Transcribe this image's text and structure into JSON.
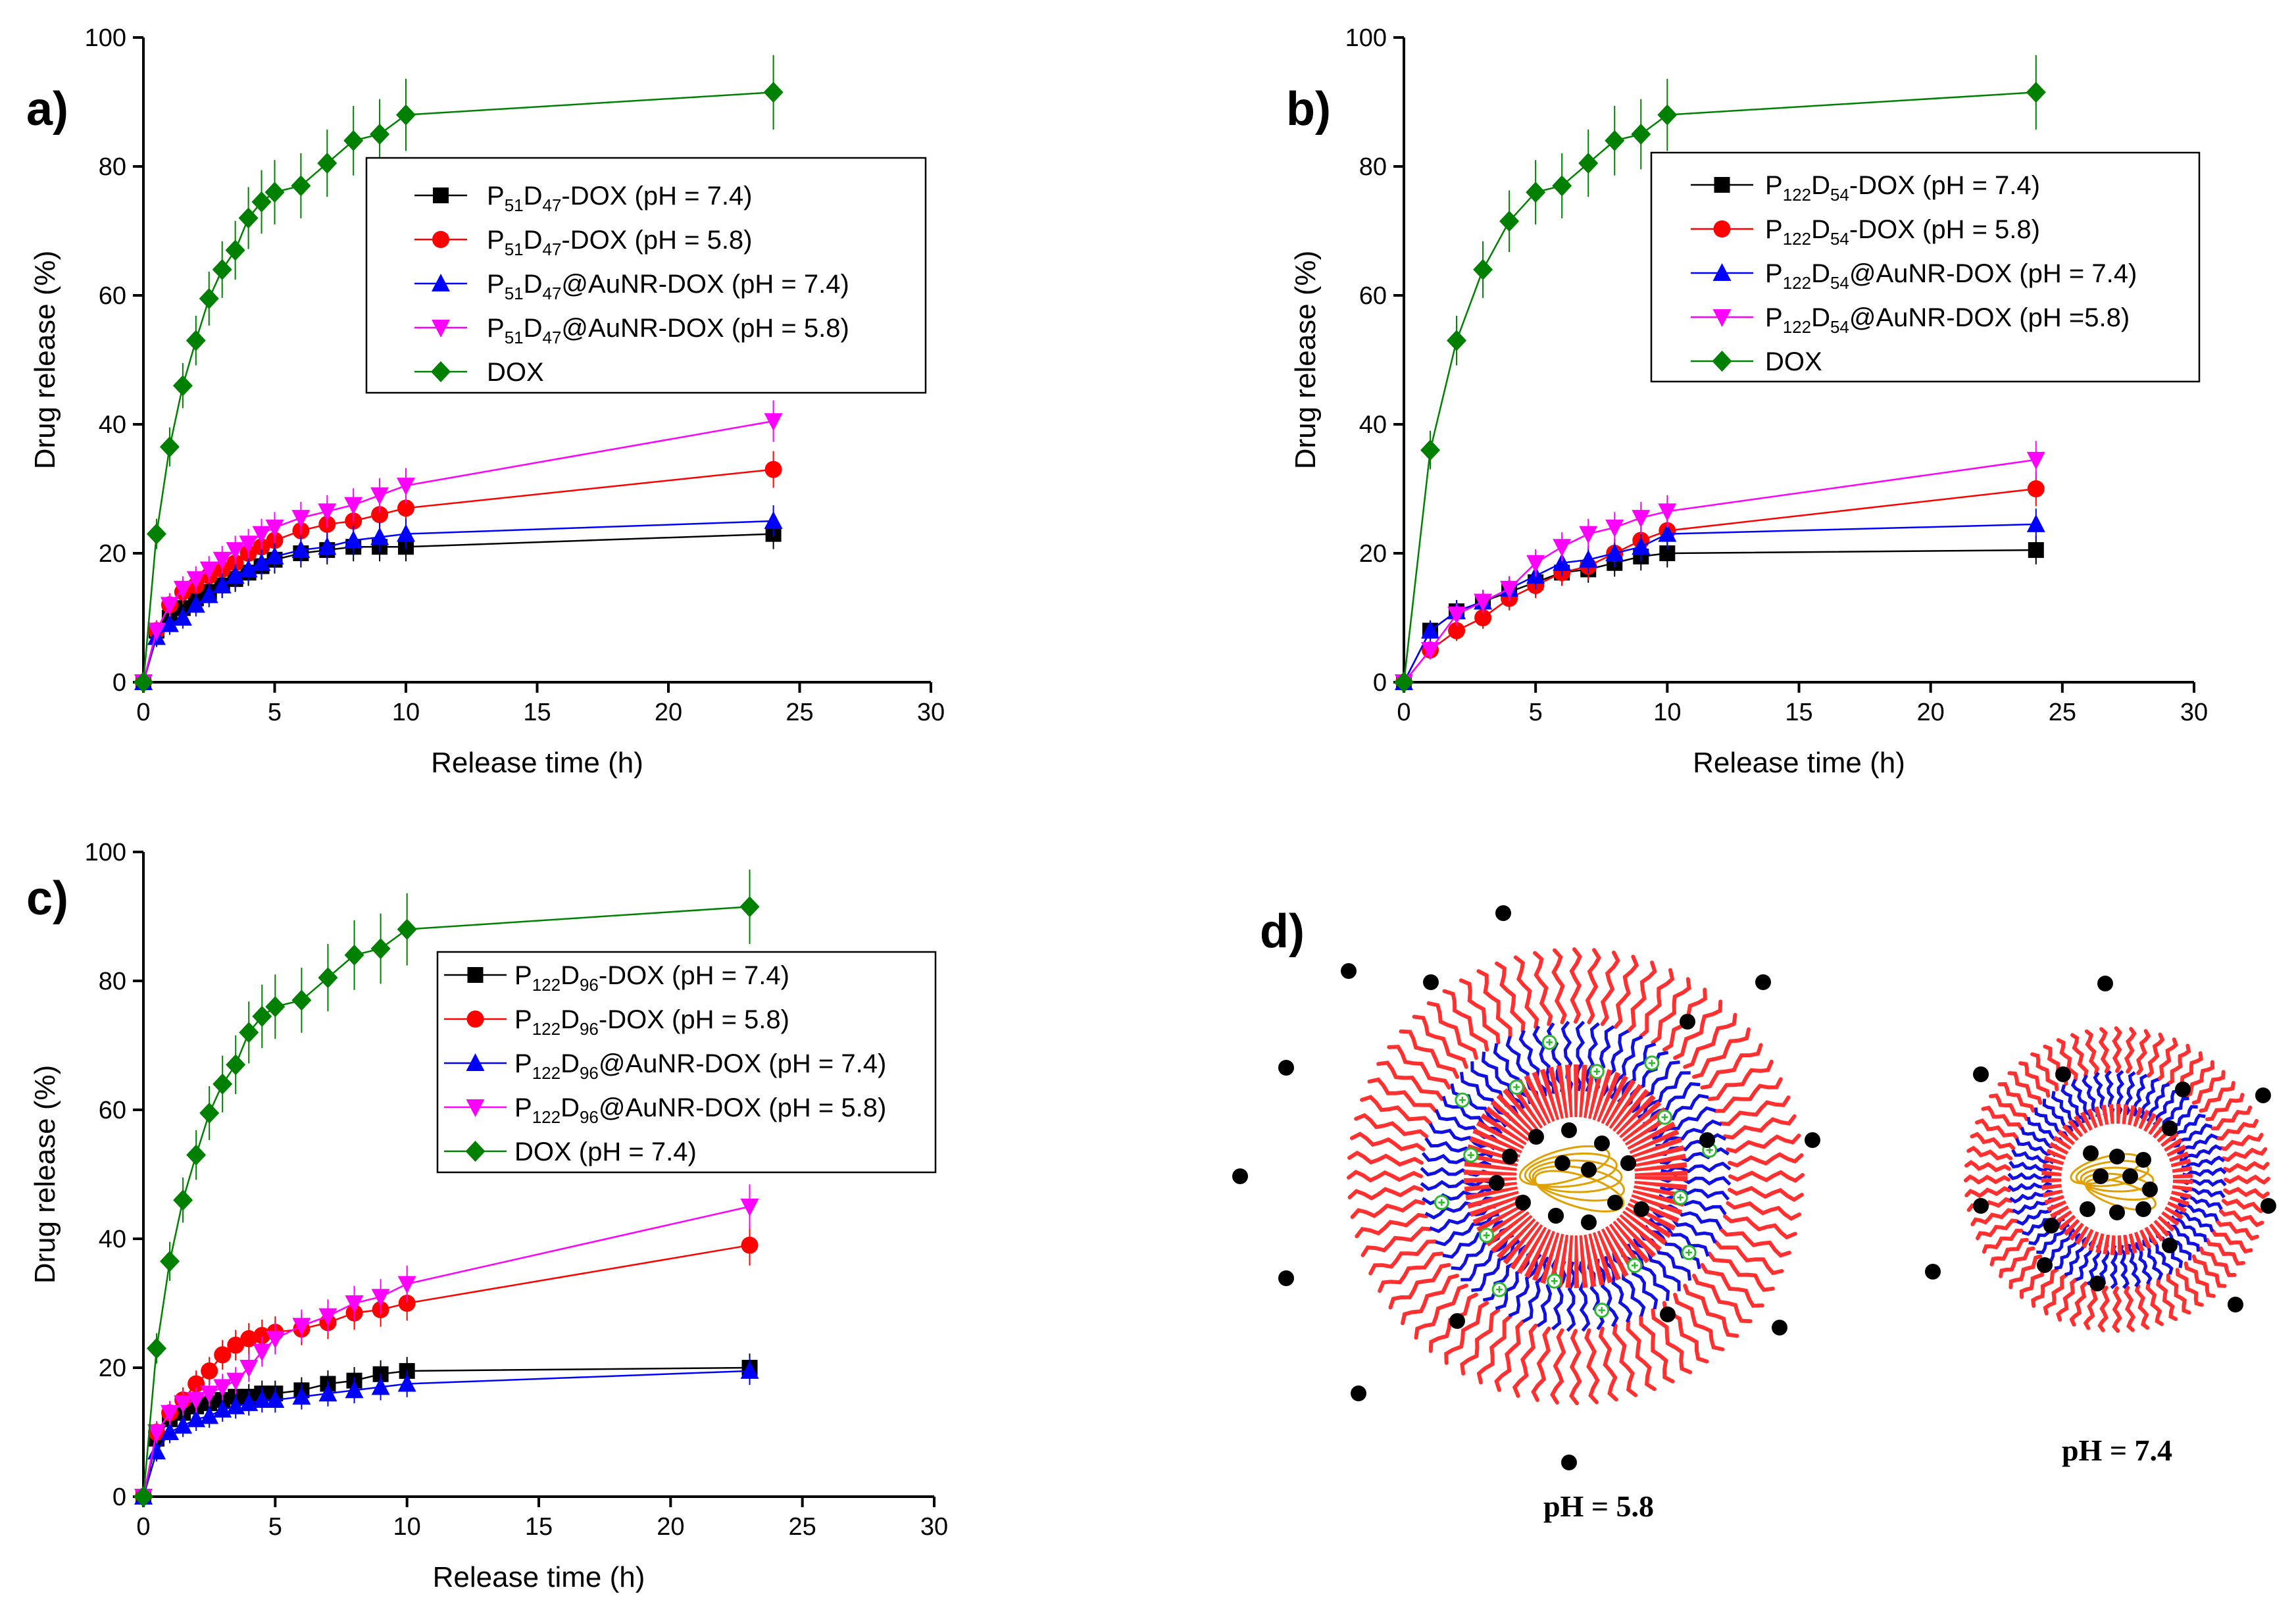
{
  "colors": {
    "black": "#000000",
    "red": "#ff0000",
    "blue": "#0000ff",
    "magenta": "#ff00ff",
    "green": "#008000",
    "shell_red": "#ff3030",
    "chain_blue": "#1010e0",
    "core_gold": "#e0a000",
    "charge_green": "#2db82d"
  },
  "chart_data": [
    {
      "panel": "a)",
      "type": "line",
      "xlabel": "Release time (h)",
      "ylabel": "Drug release (%)",
      "xlim": [
        0,
        30
      ],
      "ylim": [
        0,
        100
      ],
      "xticks": [
        0,
        5,
        10,
        15,
        20,
        25,
        30
      ],
      "yticks": [
        0,
        20,
        40,
        60,
        80,
        100
      ],
      "legend_position": "upper-right",
      "series": [
        {
          "legend": [
            [
              "P",
              ""
            ],
            [
              "51",
              "sub"
            ],
            [
              "D",
              ""
            ],
            [
              "47",
              "sub"
            ],
            [
              "-DOX (pH = 7.4)",
              ""
            ]
          ],
          "color": "black",
          "marker": "square",
          "x": [
            0,
            0.5,
            1,
            1.5,
            2,
            2.5,
            3,
            3.5,
            4,
            4.5,
            5,
            6,
            7,
            8,
            9,
            10,
            24
          ],
          "y": [
            0,
            8,
            10,
            11.5,
            13,
            14,
            15,
            16,
            17,
            18,
            19,
            20,
            20.5,
            21,
            21,
            21,
            23
          ]
        },
        {
          "legend": [
            [
              "P",
              ""
            ],
            [
              "51",
              "sub"
            ],
            [
              "D",
              ""
            ],
            [
              "47",
              "sub"
            ],
            [
              "-DOX (pH = 5.8)",
              ""
            ]
          ],
          "color": "red",
          "marker": "circle",
          "x": [
            0,
            0.5,
            1,
            1.5,
            2,
            2.5,
            3,
            3.5,
            4,
            4.5,
            5,
            6,
            7,
            8,
            9,
            10,
            24
          ],
          "y": [
            0,
            8,
            12,
            14,
            15,
            16.5,
            17.5,
            18.5,
            20,
            21,
            22,
            23.5,
            24.5,
            25,
            26,
            27,
            33
          ]
        },
        {
          "legend": [
            [
              "P",
              ""
            ],
            [
              "51",
              "sub"
            ],
            [
              "D",
              ""
            ],
            [
              "47",
              "sub"
            ],
            [
              "@AuNR-DOX (pH = 7.4)",
              ""
            ]
          ],
          "color": "blue",
          "marker": "triangle-up",
          "x": [
            0,
            0.5,
            1,
            1.5,
            2,
            2.5,
            3,
            3.5,
            4,
            4.5,
            5,
            6,
            7,
            8,
            9,
            10,
            24
          ],
          "y": [
            0,
            7,
            9,
            10,
            12,
            13.5,
            15,
            16.5,
            17.5,
            18.5,
            19.5,
            20.5,
            21,
            22,
            22.5,
            23,
            25
          ]
        },
        {
          "legend": [
            [
              "P",
              ""
            ],
            [
              "51",
              "sub"
            ],
            [
              "D",
              ""
            ],
            [
              "47",
              "sub"
            ],
            [
              "@AuNR-DOX (pH = 5.8)",
              ""
            ]
          ],
          "color": "magenta",
          "marker": "triangle-down",
          "x": [
            0,
            0.5,
            1,
            1.5,
            2,
            2.5,
            3,
            3.5,
            4,
            4.5,
            5,
            6,
            7,
            8,
            9,
            10,
            24
          ],
          "y": [
            0,
            8,
            12,
            14.5,
            16,
            17.5,
            19,
            20.5,
            21.5,
            23,
            24,
            25.5,
            26.5,
            27.5,
            29,
            30.5,
            40.5
          ]
        },
        {
          "legend": [
            [
              "DOX",
              ""
            ]
          ],
          "color": "green",
          "marker": "diamond",
          "x": [
            0,
            0.5,
            1,
            1.5,
            2,
            2.5,
            3,
            3.5,
            4,
            4.5,
            5,
            6,
            7,
            8,
            9,
            10,
            24
          ],
          "y": [
            0,
            23,
            36.5,
            46,
            53,
            59.5,
            64,
            67,
            72,
            74.5,
            76,
            77,
            80.5,
            84,
            85,
            88,
            91.5
          ]
        }
      ]
    },
    {
      "panel": "b)",
      "type": "line",
      "xlabel": "Release time (h)",
      "ylabel": "Drug release (%)",
      "xlim": [
        0,
        30
      ],
      "ylim": [
        0,
        100
      ],
      "xticks": [
        0,
        5,
        10,
        15,
        20,
        25,
        30
      ],
      "yticks": [
        0,
        20,
        40,
        60,
        80,
        100
      ],
      "legend_position": "upper-right",
      "series": [
        {
          "legend": [
            [
              "P",
              ""
            ],
            [
              "122",
              "sub"
            ],
            [
              "D",
              ""
            ],
            [
              "54",
              "sub"
            ],
            [
              "-DOX (pH = 7.4)",
              ""
            ]
          ],
          "color": "black",
          "marker": "square",
          "x": [
            0,
            1,
            2,
            3,
            4,
            5,
            6,
            7,
            8,
            9,
            10,
            24
          ],
          "y": [
            0,
            8,
            11,
            12.5,
            14,
            15.5,
            17,
            17.5,
            18.5,
            19.5,
            20,
            20.5
          ]
        },
        {
          "legend": [
            [
              "P",
              ""
            ],
            [
              "122",
              "sub"
            ],
            [
              "D",
              ""
            ],
            [
              "54",
              "sub"
            ],
            [
              "-DOX (pH = 5.8)",
              ""
            ]
          ],
          "color": "red",
          "marker": "circle",
          "x": [
            0,
            1,
            2,
            3,
            4,
            5,
            6,
            7,
            8,
            9,
            10,
            24
          ],
          "y": [
            0,
            5,
            8,
            10,
            13,
            15,
            17,
            18,
            20,
            22,
            23.5,
            30
          ]
        },
        {
          "legend": [
            [
              "P",
              ""
            ],
            [
              "122",
              "sub"
            ],
            [
              "D",
              ""
            ],
            [
              "54",
              "sub"
            ],
            [
              "@AuNR-DOX (pH = 7.4)",
              ""
            ]
          ],
          "color": "blue",
          "marker": "triangle-up",
          "x": [
            0,
            1,
            2,
            3,
            4,
            5,
            6,
            7,
            8,
            9,
            10,
            24
          ],
          "y": [
            0,
            8,
            11,
            12.5,
            14.5,
            16.5,
            18.5,
            19,
            20,
            21,
            23,
            24.5
          ]
        },
        {
          "legend": [
            [
              "P",
              ""
            ],
            [
              "122",
              "sub"
            ],
            [
              "D",
              ""
            ],
            [
              "54",
              "sub"
            ],
            [
              "@AuNR-DOX (pH =5.8)",
              ""
            ]
          ],
          "color": "magenta",
          "marker": "triangle-down",
          "x": [
            0,
            1,
            2,
            3,
            4,
            5,
            6,
            7,
            8,
            9,
            10,
            24
          ],
          "y": [
            0,
            5,
            10.5,
            12.5,
            14.5,
            18.5,
            21,
            23,
            24,
            25.5,
            26.5,
            34.5
          ]
        },
        {
          "legend": [
            [
              "DOX",
              ""
            ]
          ],
          "color": "green",
          "marker": "diamond",
          "x": [
            0,
            1,
            2,
            3,
            4,
            5,
            6,
            7,
            8,
            9,
            10,
            24
          ],
          "y": [
            0,
            36,
            53,
            64,
            71.5,
            76,
            77,
            80.5,
            84,
            85,
            88,
            91.5
          ]
        }
      ]
    },
    {
      "panel": "c)",
      "type": "line",
      "xlabel": "Release time (h)",
      "ylabel": "Drug release (%)",
      "xlim": [
        0,
        30
      ],
      "ylim": [
        0,
        100
      ],
      "xticks": [
        0,
        5,
        10,
        15,
        20,
        25,
        30
      ],
      "yticks": [
        0,
        20,
        40,
        60,
        80,
        100
      ],
      "legend_position": "center-right",
      "series": [
        {
          "legend": [
            [
              "P",
              ""
            ],
            [
              "122",
              "sub"
            ],
            [
              "D",
              ""
            ],
            [
              "96",
              "sub"
            ],
            [
              "-DOX (pH = 7.4)",
              ""
            ]
          ],
          "color": "black",
          "marker": "square",
          "x": [
            0,
            0.5,
            1,
            1.5,
            2,
            2.5,
            3,
            3.5,
            4,
            4.5,
            5,
            6,
            7,
            8,
            9,
            10,
            23
          ],
          "y": [
            0,
            9,
            12,
            13,
            14,
            14.5,
            15,
            15.5,
            15.5,
            16,
            16,
            16.5,
            17.5,
            18,
            19,
            19.5,
            20
          ]
        },
        {
          "legend": [
            [
              "P",
              ""
            ],
            [
              "122",
              "sub"
            ],
            [
              "D",
              ""
            ],
            [
              "96",
              "sub"
            ],
            [
              "-DOX (pH = 5.8)",
              ""
            ]
          ],
          "color": "red",
          "marker": "circle",
          "x": [
            0,
            0.5,
            1,
            1.5,
            2,
            2.5,
            3,
            3.5,
            4,
            4.5,
            5,
            6,
            7,
            8,
            9,
            10,
            23
          ],
          "y": [
            0,
            10,
            13,
            15,
            17.5,
            19.5,
            22,
            23.5,
            24.5,
            25,
            25.5,
            26,
            27,
            28.5,
            29,
            30,
            39
          ]
        },
        {
          "legend": [
            [
              "P",
              ""
            ],
            [
              "122",
              "sub"
            ],
            [
              "D",
              ""
            ],
            [
              "96",
              "sub"
            ],
            [
              "@AuNR-DOX (pH = 7.4)",
              ""
            ]
          ],
          "color": "blue",
          "marker": "triangle-up",
          "x": [
            0,
            0.5,
            1,
            1.5,
            2,
            2.5,
            3,
            3.5,
            4,
            4.5,
            5,
            6,
            7,
            8,
            9,
            10,
            23
          ],
          "y": [
            0,
            7,
            10,
            11,
            12,
            12.5,
            13.5,
            14,
            14.5,
            15,
            15,
            15.5,
            16,
            16.5,
            17,
            17.5,
            19.5
          ]
        },
        {
          "legend": [
            [
              "P",
              ""
            ],
            [
              "122",
              "sub"
            ],
            [
              "D",
              ""
            ],
            [
              "96",
              "sub"
            ],
            [
              "@AuNR-DOX (pH = 5.8)",
              ""
            ]
          ],
          "color": "magenta",
          "marker": "triangle-down",
          "x": [
            0,
            0.5,
            1,
            1.5,
            2,
            2.5,
            3,
            3.5,
            4,
            4.5,
            5,
            6,
            7,
            8,
            9,
            10,
            23
          ],
          "y": [
            0,
            10,
            13,
            14.5,
            15,
            16,
            17,
            18,
            20,
            22.5,
            24.5,
            26.5,
            28,
            30,
            31,
            33,
            45
          ]
        },
        {
          "legend": [
            [
              "DOX (pH = 7.4)",
              ""
            ]
          ],
          "color": "green",
          "marker": "diamond",
          "x": [
            0,
            0.5,
            1,
            1.5,
            2,
            2.5,
            3,
            3.5,
            4,
            4.5,
            5,
            6,
            7,
            8,
            9,
            10,
            23
          ],
          "y": [
            0,
            23,
            36.5,
            46,
            53,
            59.5,
            64,
            67,
            72,
            74.5,
            76,
            77,
            80.5,
            84,
            85,
            88,
            91.5
          ]
        }
      ]
    }
  ],
  "schematic": {
    "panel": "d)",
    "left_label": "pH = 5.8",
    "right_label": "pH = 7.4"
  }
}
